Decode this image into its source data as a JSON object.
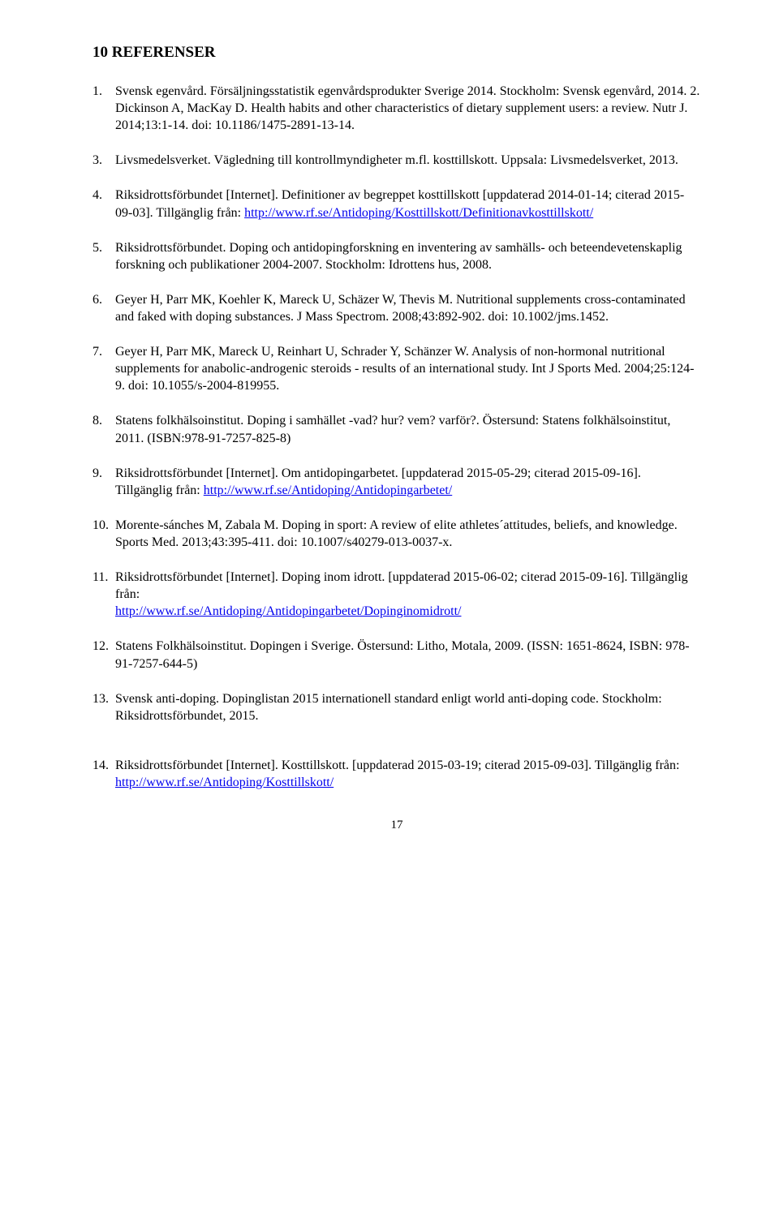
{
  "heading": "10  REFERENSER",
  "page_number": "17",
  "link_color": "#0000ee",
  "text_color": "#000000",
  "background_color": "#ffffff",
  "font_family": "Times New Roman",
  "refs": [
    {
      "text": "Svensk egenvård. Försäljningsstatistik egenvårdsprodukter Sverige 2014. Stockholm: Svensk egenvård, 2014. 2. Dickinson A, MacKay D. Health habits and other characteristics of dietary supplement users: a review. Nutr J. 2014;13:1-14. doi: 10.1186/1475-2891-13-14."
    },
    {
      "text": "Livsmedelsverket. Vägledning till kontrollmyndigheter m.fl. kosttillskott. Uppsala: Livsmedelsverket, 2013.",
      "start": "3."
    },
    {
      "text_before": "Riksidrottsförbundet [Internet]. Definitioner av begreppet kosttillskott [uppdaterad 2014-01-14; citerad 2015-09-03]. Tillgänglig från: ",
      "link_text": "http://www.rf.se/Antidoping/Kosttillskott/Definitionavkosttillskott/",
      "start": "4."
    },
    {
      "text": "Riksidrottsförbundet. Doping och antidopingforskning en inventering av samhälls- och beteendevetenskaplig forskning och publikationer 2004-2007. Stockholm: Idrottens hus, 2008.",
      "start": "5."
    },
    {
      "text": "Geyer H, Parr MK, Koehler K, Mareck U, Schäzer W, Thevis M. Nutritional supplements cross-contaminated and faked with doping substances. J Mass Spectrom. 2008;43:892-902. doi: 10.1002/jms.1452.",
      "start": "6."
    },
    {
      "text": "Geyer H, Parr MK, Mareck U, Reinhart U, Schrader Y, Schänzer W. Analysis of non-hormonal nutritional supplements for anabolic-androgenic steroids - results of an international study. Int J Sports Med. 2004;25:124-9. doi: 10.1055/s-2004-819955.",
      "start": "7."
    },
    {
      "text": "Statens folkhälsoinstitut. Doping i samhället -vad? hur? vem? varför?. Östersund: Statens folkhälsoinstitut, 2011. (ISBN:978-91-7257-825-8)",
      "start": "8."
    },
    {
      "text_before": "Riksidrottsförbundet [Internet]. Om antidopingarbetet. [uppdaterad 2015-05-29; citerad 2015-09-16]. Tillgänglig från: ",
      "link_text": "http://www.rf.se/Antidoping/Antidopingarbetet/",
      "start": "9."
    },
    {
      "text": "Morente-sánches M, Zabala M. Doping in sport: A review of elite athletes´attitudes, beliefs, and knowledge. Sports Med. 2013;43:395-411. doi: 10.1007/s40279-013-0037-x.",
      "start": "10."
    },
    {
      "text_before": "Riksidrottsförbundet [Internet]. Doping inom idrott. [uppdaterad 2015-06-02; citerad 2015-09-16]. Tillgänglig från: ",
      "link_text": "http://www.rf.se/Antidoping/Antidopingarbetet/Dopinginomidrott/",
      "link_on_newline": true,
      "start": "11."
    },
    {
      "text": "Statens Folkhälsoinstitut. Dopingen i Sverige. Östersund: Litho, Motala, 2009. (ISSN: 1651-8624, ISBN: 978-91-7257-644-5)",
      "start": "12."
    },
    {
      "text": "Svensk anti-doping. Dopinglistan 2015 internationell standard enligt world anti-doping code. Stockholm: Riksidrottsförbundet, 2015.",
      "start": "13.",
      "extra_margin_bottom": true
    },
    {
      "text_before": "Riksidrottsförbundet [Internet]. Kosttillskott. [uppdaterad 2015-03-19; citerad 2015-09-03]. Tillgänglig från: ",
      "link_text": "http://www.rf.se/Antidoping/Kosttillskott/",
      "start": "14."
    }
  ]
}
